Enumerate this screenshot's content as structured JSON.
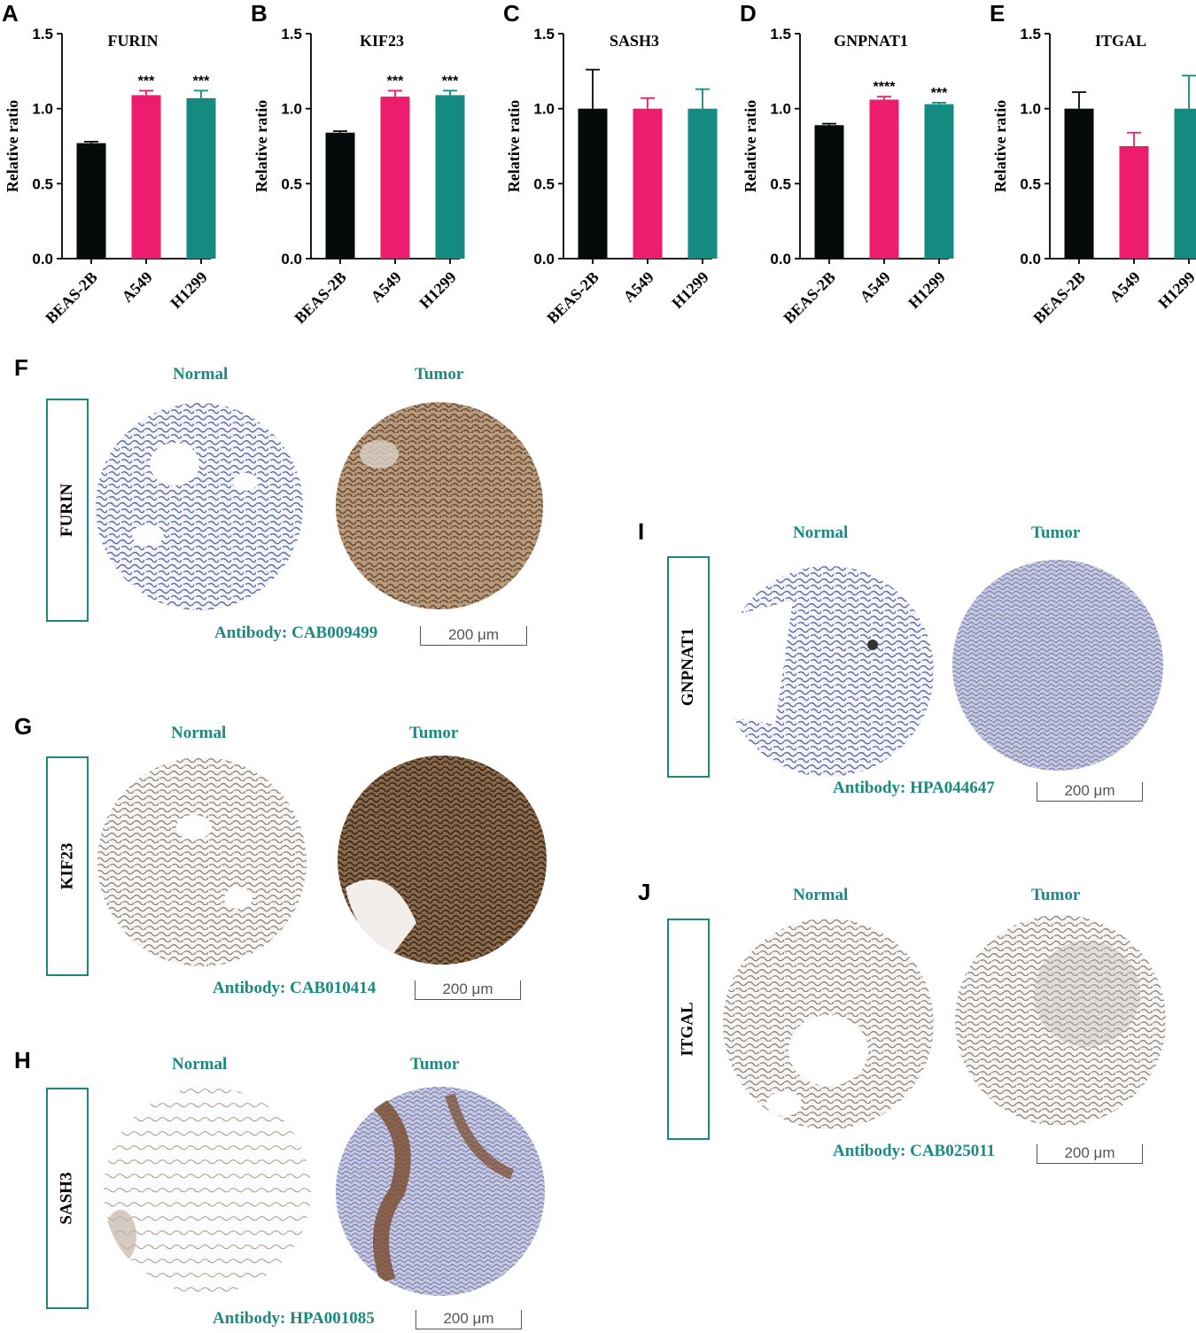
{
  "panel_letters": {
    "a": "A",
    "b": "B",
    "c": "C",
    "d": "D",
    "e": "E",
    "f": "F",
    "g": "G",
    "h": "H",
    "i": "I",
    "j": "J"
  },
  "colors": {
    "beas2b": "#050a0a",
    "a549": "#ee1c6c",
    "h1299": "#148a80",
    "teal_text": "#1a8a80"
  },
  "chart_data": [
    {
      "type": "bar",
      "title": "FURIN",
      "ylabel": "Relative ratio",
      "categories": [
        "BEAS-2B",
        "A549",
        "H1299"
      ],
      "values": [
        0.77,
        1.09,
        1.07
      ],
      "errors": [
        0.01,
        0.03,
        0.05
      ],
      "significance": [
        "",
        "***",
        "***"
      ],
      "ylim": [
        0,
        1.5
      ],
      "yticks": [
        "0.0",
        "0.5",
        "1.0",
        "1.5"
      ]
    },
    {
      "type": "bar",
      "title": "KIF23",
      "ylabel": "Relative ratio",
      "categories": [
        "BEAS-2B",
        "A549",
        "H1299"
      ],
      "values": [
        0.84,
        1.08,
        1.09
      ],
      "errors": [
        0.01,
        0.04,
        0.03
      ],
      "significance": [
        "",
        "***",
        "***"
      ],
      "ylim": [
        0,
        1.5
      ],
      "yticks": [
        "0.0",
        "0.5",
        "1.0",
        "1.5"
      ]
    },
    {
      "type": "bar",
      "title": "SASH3",
      "ylabel": "Relative ratio",
      "categories": [
        "BEAS-2B",
        "A549",
        "H1299"
      ],
      "values": [
        1.0,
        1.0,
        1.0
      ],
      "errors": [
        0.26,
        0.07,
        0.13
      ],
      "significance": [
        "",
        "",
        ""
      ],
      "ylim": [
        0,
        1.5
      ],
      "yticks": [
        "0.0",
        "0.5",
        "1.0",
        "1.5"
      ]
    },
    {
      "type": "bar",
      "title": "GNPNAT1",
      "ylabel": "Relative ratio",
      "categories": [
        "BEAS-2B",
        "A549",
        "H1299"
      ],
      "values": [
        0.89,
        1.06,
        1.03
      ],
      "errors": [
        0.01,
        0.02,
        0.01
      ],
      "significance": [
        "",
        "****",
        "***"
      ],
      "ylim": [
        0,
        1.5
      ],
      "yticks": [
        "0.0",
        "0.5",
        "1.0",
        "1.5"
      ]
    },
    {
      "type": "bar",
      "title": "ITGAL",
      "ylabel": "Relative ratio",
      "categories": [
        "BEAS-2B",
        "A549",
        "H1299"
      ],
      "values": [
        1.0,
        0.75,
        1.0
      ],
      "errors": [
        0.11,
        0.09,
        0.22
      ],
      "significance": [
        "",
        "",
        ""
      ],
      "ylim": [
        0,
        1.5
      ],
      "yticks": [
        "0.0",
        "0.5",
        "1.0",
        "1.5"
      ]
    }
  ],
  "ihc": {
    "normal_label": "Normal",
    "tumor_label": "Tumor",
    "scale_label": "200 μm",
    "panels": {
      "f": {
        "gene": "FURIN",
        "antibody": "Antibody: CAB009499"
      },
      "g": {
        "gene": "KIF23",
        "antibody": "Antibody: CAB010414"
      },
      "h": {
        "gene": "SASH3",
        "antibody": "Antibody: HPA001085"
      },
      "i": {
        "gene": "GNPNAT1",
        "antibody": "Antibody: HPA044647"
      },
      "j": {
        "gene": "ITGAL",
        "antibody": "Antibody: CAB025011"
      }
    }
  }
}
